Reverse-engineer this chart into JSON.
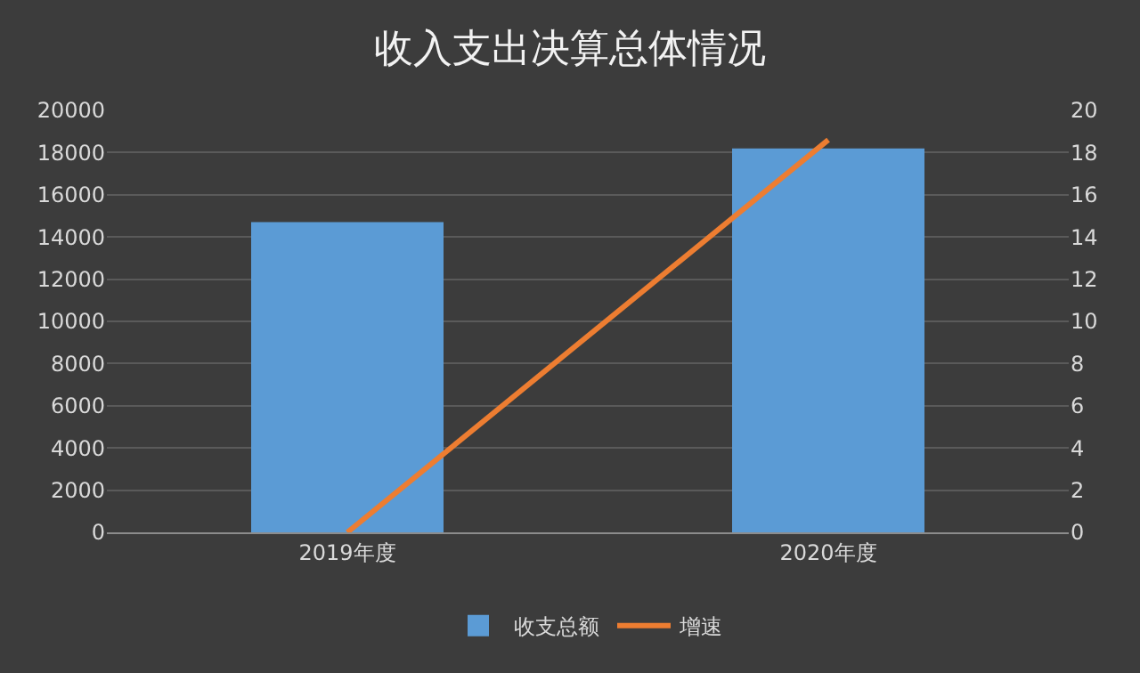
{
  "chart_data": {
    "type": "bar",
    "title": "收入支出决算总体情况",
    "categories": [
      "2019年度",
      "2020年度"
    ],
    "series": [
      {
        "name": "收支总额",
        "color": "#5b9bd5",
        "values": [
          14700,
          18200
        ]
      },
      {
        "name": "增速",
        "type": "line",
        "axis": "y2",
        "color": "#ed7d31",
        "values": [
          0,
          18.6
        ]
      }
    ],
    "ylim": [
      0,
      20000
    ],
    "yticks": [
      0,
      2000,
      4000,
      6000,
      8000,
      10000,
      12000,
      14000,
      16000,
      18000,
      20000
    ],
    "y2lim": [
      0,
      20
    ],
    "y2ticks": [
      0,
      2,
      4,
      6,
      8,
      10,
      12,
      14,
      16,
      18,
      20
    ],
    "grid": "y",
    "legend": "bottom",
    "marker": "none"
  }
}
